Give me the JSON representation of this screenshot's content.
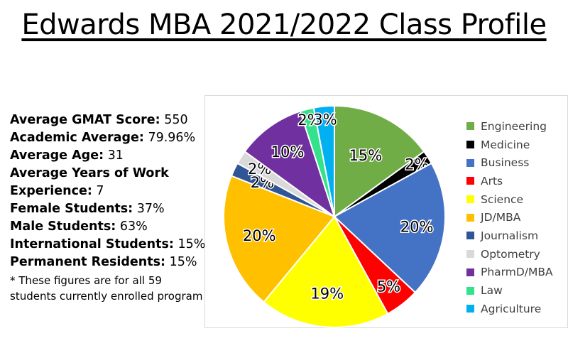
{
  "title": "Edwards MBA 2021/2022 Class Profile",
  "stats": [
    {
      "label": "Average GMAT Score:",
      "value": "550"
    },
    {
      "label": "Academic Average:",
      "value": "79.96%"
    },
    {
      "label": "Average Age:",
      "value": "31"
    },
    {
      "label": "Average Years of Work Experience:",
      "value": "7"
    },
    {
      "label": "Female Students:",
      "value": "37%"
    },
    {
      "label": "Male Students:",
      "value": "63%"
    },
    {
      "label": "International Students:",
      "value": "15%"
    },
    {
      "label": "Permanent Residents:",
      "value": "15%"
    }
  ],
  "note": "* These figures are for all 59 students currently enrolled program",
  "chart_data": {
    "type": "pie",
    "legend_position": "right",
    "categories": [
      "Engineering",
      "Medicine",
      "Business",
      "Arts",
      "Science",
      "JD/MBA",
      "Journalism",
      "Optometry",
      "PharmD/MBA",
      "Law",
      "Agriculture"
    ],
    "values": [
      15,
      2,
      20,
      5,
      19,
      20,
      2,
      2,
      10,
      2,
      3
    ],
    "labels": [
      "15%",
      "2%",
      "20%",
      "5%",
      "19%",
      "20%",
      "2%",
      "2%",
      "10%",
      "2%",
      "3%"
    ],
    "colors": [
      "#70ad47",
      "#000000",
      "#4472c4",
      "#ff0000",
      "#ffff00",
      "#ffc000",
      "#2f5597",
      "#d9d9d9",
      "#7030a0",
      "#33e28a",
      "#00b0f0"
    ]
  }
}
